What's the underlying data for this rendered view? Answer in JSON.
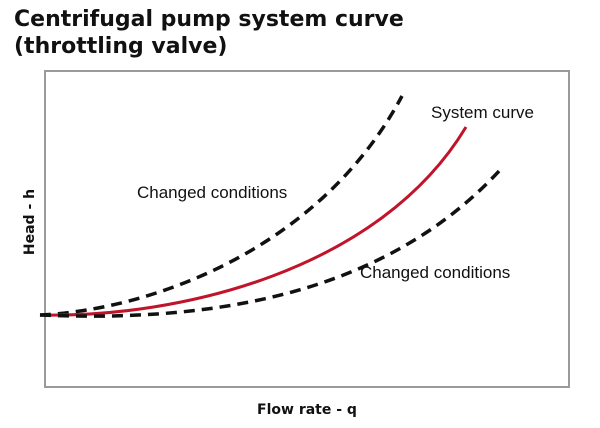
{
  "title": {
    "line1": "Centrifugal pump system curve",
    "line2": "(throttling valve)"
  },
  "axes": {
    "xlabel": "Flow rate - q",
    "ylabel": "Head - h"
  },
  "annotations": {
    "system_curve": "System curve",
    "changed_conditions_upper": "Changed conditions",
    "changed_conditions_lower": "Changed conditions"
  },
  "colors": {
    "system_curve": "#c0142a",
    "changed_curves": "#111111",
    "frame": "#9a9a9a"
  },
  "curves": [
    {
      "id": "changed-upper",
      "label_key": "changed_conditions_upper",
      "style": "dashed",
      "steepness": "high"
    },
    {
      "id": "system",
      "label_key": "system_curve",
      "style": "solid",
      "steepness": "medium"
    },
    {
      "id": "changed-lower",
      "label_key": "changed_conditions_lower",
      "style": "dashed",
      "steepness": "low"
    }
  ]
}
